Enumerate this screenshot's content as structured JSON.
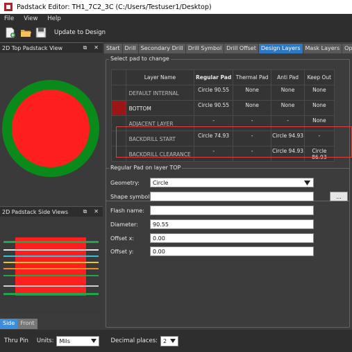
{
  "window": {
    "title": "Padstack Editor: TH1_7C2_3C (C:/Users/Testuser1/Desktop)"
  },
  "menu": [
    "File",
    "View",
    "Help"
  ],
  "toolbar": {
    "update_label": "Update to Design"
  },
  "left": {
    "top_view_title": "2D Top Padstack View",
    "side_view_title": "2D Padstack Side Views",
    "tabs": [
      "Side",
      "Front"
    ]
  },
  "tabs": [
    "Start",
    "Drill",
    "Secondary Drill",
    "Drill Symbol",
    "Drill Offset",
    "Design Layers",
    "Mask Layers",
    "Options"
  ],
  "active_tab": "Design Layers",
  "select_pad": {
    "group_title": "Select pad to change",
    "headers": [
      "Layer Name",
      "Regular Pad",
      "Thermal Pad",
      "Anti Pad",
      "Keep Out"
    ],
    "rows": [
      {
        "layer": "DEFAULT INTERNAL",
        "regular": "Circle 90.55",
        "thermal": "None",
        "anti": "None",
        "keepout": "None"
      },
      {
        "layer": "BOTTOM",
        "regular": "Circle 90.55",
        "thermal": "None",
        "anti": "None",
        "keepout": "None"
      },
      {
        "layer": "ADJACENT LAYER",
        "regular": "-",
        "thermal": "-",
        "anti": "-",
        "keepout": "None"
      },
      {
        "layer": "BACKDRILL START",
        "regular": "Circle 74.93",
        "thermal": "-",
        "anti": "Circle 94.93",
        "keepout": "-"
      },
      {
        "layer": "BACKDRILL CLEARANCE",
        "regular": "-",
        "thermal": "-",
        "anti": "Circle 94.93",
        "keepout": "Circle 86.93"
      }
    ]
  },
  "regular_pad": {
    "group_title": "Regular Pad on layer TOP",
    "geometry_label": "Geometry:",
    "geometry_value": "Circle",
    "shape_symbol_label": "Shape symbol:",
    "shape_symbol_value": "",
    "shape_btn": "...",
    "flash_label": "Flash name:",
    "flash_value": "",
    "diameter_label": "Diameter:",
    "diameter_value": "90.55",
    "offx_label": "Offset x:",
    "offx_value": "0.00",
    "offy_label": "Offset y:",
    "offy_value": "0.00"
  },
  "bottom": {
    "thru_pin": "Thru Pin",
    "units_label": "Units:",
    "units_value": "Mils",
    "decimal_label": "Decimal places:",
    "decimal_value": "2"
  },
  "colors": {
    "pad_red": "#ff1f1f",
    "antipad_green": "#0a8a1a",
    "accent_blue": "#2f78c4",
    "highlight_red": "#e0413a"
  }
}
